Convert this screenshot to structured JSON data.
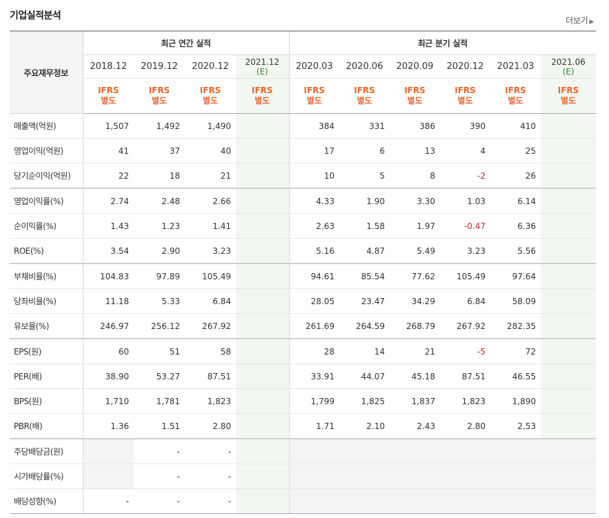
{
  "title": "기업실적분석",
  "more_label": "더보기",
  "header": {
    "row_label": "주요재무정보",
    "annual_group": "최근 연간 실적",
    "quarter_group": "최근 분기 실적",
    "annual_periods": [
      "2018.12",
      "2019.12",
      "2020.12",
      "2021.12"
    ],
    "quarter_periods": [
      "2020.03",
      "2020.06",
      "2020.09",
      "2020.12",
      "2021.03",
      "2021.06"
    ],
    "estimate_suffix": "(E)",
    "ifrs_line1": "IFRS",
    "ifrs_line2": "별도"
  },
  "rows": [
    {
      "label": "매출액(억원)",
      "annual": [
        "1,507",
        "1,492",
        "1,490",
        ""
      ],
      "quarter": [
        "384",
        "331",
        "386",
        "390",
        "410",
        ""
      ]
    },
    {
      "label": "영업이익(억원)",
      "annual": [
        "41",
        "37",
        "40",
        ""
      ],
      "quarter": [
        "17",
        "6",
        "13",
        "4",
        "25",
        ""
      ]
    },
    {
      "label": "당기순이익(억원)",
      "annual": [
        "22",
        "18",
        "21",
        ""
      ],
      "quarter": [
        "10",
        "5",
        "8",
        "-2",
        "26",
        ""
      ]
    },
    {
      "label": "영업이익률(%)",
      "annual": [
        "2.74",
        "2.48",
        "2.66",
        ""
      ],
      "quarter": [
        "4.33",
        "1.90",
        "3.30",
        "1.03",
        "6.14",
        ""
      ]
    },
    {
      "label": "순이익률(%)",
      "annual": [
        "1.43",
        "1.23",
        "1.41",
        ""
      ],
      "quarter": [
        "2.63",
        "1.58",
        "1.97",
        "-0.47",
        "6.36",
        ""
      ]
    },
    {
      "label": "ROE(%)",
      "annual": [
        "3.54",
        "2.90",
        "3.23",
        ""
      ],
      "quarter": [
        "5.16",
        "4.87",
        "5.49",
        "3.23",
        "5.56",
        ""
      ]
    },
    {
      "label": "부채비율(%)",
      "annual": [
        "104.83",
        "97.89",
        "105.49",
        ""
      ],
      "quarter": [
        "94.61",
        "85.54",
        "77.62",
        "105.49",
        "97.64",
        ""
      ]
    },
    {
      "label": "당좌비율(%)",
      "annual": [
        "11.18",
        "5.33",
        "6.84",
        ""
      ],
      "quarter": [
        "28.05",
        "23.47",
        "34.29",
        "6.84",
        "58.09",
        ""
      ]
    },
    {
      "label": "유보율(%)",
      "annual": [
        "246.97",
        "256.12",
        "267.92",
        ""
      ],
      "quarter": [
        "261.69",
        "264.59",
        "268.79",
        "267.92",
        "282.35",
        ""
      ]
    },
    {
      "label": "EPS(원)",
      "annual": [
        "60",
        "51",
        "58",
        ""
      ],
      "quarter": [
        "28",
        "14",
        "21",
        "-5",
        "72",
        ""
      ]
    },
    {
      "label": "PER(배)",
      "annual": [
        "38.90",
        "53.27",
        "87.51",
        ""
      ],
      "quarter": [
        "33.91",
        "44.07",
        "45.18",
        "87.51",
        "46.55",
        ""
      ]
    },
    {
      "label": "BPS(원)",
      "annual": [
        "1,710",
        "1,781",
        "1,823",
        ""
      ],
      "quarter": [
        "1,799",
        "1,825",
        "1,837",
        "1,823",
        "1,890",
        ""
      ]
    },
    {
      "label": "PBR(배)",
      "annual": [
        "1.36",
        "1.51",
        "2.80",
        ""
      ],
      "quarter": [
        "1.71",
        "2.10",
        "2.43",
        "2.80",
        "2.53",
        ""
      ]
    },
    {
      "label": "주당배당금(원)",
      "annual": [
        null,
        "-",
        "-",
        ""
      ],
      "quarter": [
        null,
        null,
        null,
        null,
        null,
        null
      ]
    },
    {
      "label": "시가배당률(%)",
      "annual": [
        null,
        "-",
        "-",
        ""
      ],
      "quarter": [
        null,
        null,
        null,
        null,
        null,
        null
      ]
    },
    {
      "label": "배당성향(%)",
      "annual": [
        "-",
        "-",
        "-",
        ""
      ],
      "quarter": [
        null,
        null,
        null,
        null,
        null,
        null
      ]
    }
  ],
  "group_starts": [
    3,
    6,
    9,
    13
  ]
}
